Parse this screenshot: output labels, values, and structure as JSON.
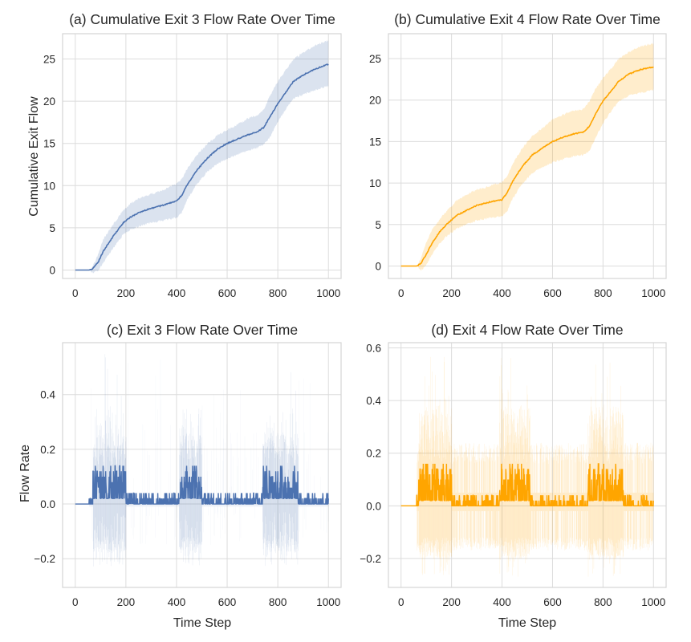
{
  "chart_data": [
    {
      "id": "a",
      "type": "line",
      "title": "(a) Cumulative Exit 3 Flow Rate Over Time",
      "xlabel": "",
      "ylabel": "Cumulative Exit Flow",
      "xlim": [
        -50,
        1050
      ],
      "ylim": [
        -1.0,
        28.0
      ],
      "xticks": [
        0,
        200,
        400,
        600,
        800,
        1000
      ],
      "xtick_labels": [
        "0",
        "200",
        "400",
        "600",
        "800",
        "1000"
      ],
      "yticks": [
        0,
        5,
        10,
        15,
        20,
        25
      ],
      "ytick_labels": [
        "0",
        "5",
        "10",
        "15",
        "20",
        "25"
      ],
      "grid": true,
      "color": "#4c72b0",
      "band_color": "#4c72b0",
      "band_opacity": 0.2,
      "x": [
        0,
        55,
        70,
        90,
        110,
        150,
        190,
        220,
        260,
        300,
        350,
        400,
        420,
        440,
        480,
        520,
        560,
        600,
        640,
        680,
        720,
        745,
        770,
        800,
        830,
        860,
        900,
        940,
        980,
        1000
      ],
      "mean": [
        0,
        0,
        0.2,
        0.9,
        2.2,
        4.0,
        5.6,
        6.3,
        6.9,
        7.3,
        7.7,
        8.2,
        8.8,
        10.0,
        11.8,
        13.2,
        14.3,
        15.0,
        15.5,
        16.0,
        16.4,
        16.9,
        18.2,
        19.7,
        21.0,
        22.3,
        23.1,
        23.7,
        24.2,
        24.4
      ],
      "lower": [
        0,
        0,
        -0.3,
        0,
        0.8,
        2.6,
        4.2,
        4.8,
        5.3,
        5.6,
        5.9,
        6.2,
        6.8,
        8.2,
        10.2,
        11.6,
        12.6,
        13.2,
        13.7,
        14.1,
        14.5,
        14.9,
        15.8,
        17.5,
        19.0,
        20.3,
        20.8,
        21.2,
        21.6,
        21.8
      ],
      "upper": [
        0,
        0,
        0.5,
        1.8,
        3.6,
        5.4,
        7.1,
        7.9,
        8.6,
        9.0,
        9.5,
        10.2,
        10.7,
        11.9,
        13.6,
        14.9,
        15.9,
        16.6,
        17.2,
        17.9,
        18.4,
        19.0,
        20.7,
        22.3,
        23.6,
        24.9,
        25.8,
        26.5,
        27.0,
        27.2
      ]
    },
    {
      "id": "b",
      "type": "line",
      "title": "(b) Cumulative Exit 4 Flow Rate Over Time",
      "xlabel": "",
      "ylabel": "",
      "xlim": [
        -50,
        1050
      ],
      "ylim": [
        -1.5,
        28.0
      ],
      "xticks": [
        0,
        200,
        400,
        600,
        800,
        1000
      ],
      "xtick_labels": [
        "0",
        "200",
        "400",
        "600",
        "800",
        "1000"
      ],
      "yticks": [
        0,
        5,
        10,
        15,
        20,
        25
      ],
      "ytick_labels": [
        "0",
        "5",
        "10",
        "15",
        "20",
        "25"
      ],
      "grid": true,
      "color": "#ffa500",
      "band_color": "#ffa500",
      "band_opacity": 0.2,
      "x": [
        0,
        65,
        80,
        100,
        120,
        150,
        180,
        220,
        260,
        300,
        350,
        400,
        420,
        440,
        480,
        520,
        560,
        600,
        640,
        680,
        720,
        745,
        770,
        800,
        830,
        860,
        900,
        940,
        980,
        1000
      ],
      "mean": [
        0,
        0,
        0.4,
        1.4,
        2.6,
        4.0,
        5.0,
        6.1,
        6.7,
        7.3,
        7.7,
        8.0,
        8.8,
        10.1,
        12.0,
        13.4,
        14.2,
        15.0,
        15.5,
        15.9,
        16.1,
        16.8,
        18.3,
        19.9,
        21.0,
        22.2,
        23.1,
        23.6,
        23.9,
        24.0
      ],
      "lower": [
        0,
        0,
        -0.5,
        0.2,
        1.2,
        2.6,
        3.6,
        4.5,
        5.0,
        5.5,
        5.8,
        6.0,
        6.6,
        8.0,
        9.9,
        11.2,
        11.9,
        12.5,
        12.9,
        13.2,
        13.4,
        13.8,
        15.4,
        17.2,
        18.6,
        19.8,
        20.5,
        20.8,
        21.1,
        21.3
      ],
      "upper": [
        0,
        0,
        1.1,
        2.8,
        4.2,
        5.5,
        6.6,
        7.9,
        8.6,
        9.2,
        9.6,
        10.1,
        10.8,
        12.2,
        14.2,
        15.7,
        16.6,
        17.7,
        18.2,
        18.7,
        18.9,
        19.8,
        21.3,
        22.7,
        23.7,
        24.9,
        25.8,
        26.4,
        26.7,
        26.8
      ]
    },
    {
      "id": "c",
      "type": "line",
      "title": "(c) Exit 3 Flow Rate Over Time",
      "xlabel": "Time Step",
      "ylabel": "Flow Rate",
      "xlim": [
        -50,
        1050
      ],
      "ylim": [
        -0.305,
        0.59
      ],
      "xticks": [
        0,
        200,
        400,
        600,
        800,
        1000
      ],
      "xtick_labels": [
        "0",
        "200",
        "400",
        "600",
        "800",
        "1000"
      ],
      "yticks": [
        -0.2,
        0.0,
        0.2,
        0.4
      ],
      "ytick_labels": [
        "−0.2",
        "0.0",
        "0.2",
        "0.4"
      ],
      "grid": true,
      "color": "#4c72b0",
      "band_color": "#4c72b0",
      "band_opacity": 0.2,
      "n_steps": 1000,
      "flow_start": 55,
      "quantum": 0.02,
      "active_periods": [
        [
          70,
          200
        ],
        [
          410,
          500
        ],
        [
          740,
          880
        ]
      ],
      "active_mean_max": 0.14,
      "quiet_mean_max": 0.04,
      "band_peak_upper": 0.55,
      "band_peak_lower": -0.27,
      "seed": 3
    },
    {
      "id": "d",
      "type": "line",
      "title": "(d) Exit 4 Flow Rate Over Time",
      "xlabel": "Time Step",
      "ylabel": "",
      "xlim": [
        -50,
        1050
      ],
      "ylim": [
        -0.31,
        0.62
      ],
      "xticks": [
        0,
        200,
        400,
        600,
        800,
        1000
      ],
      "xtick_labels": [
        "0",
        "200",
        "400",
        "600",
        "800",
        "1000"
      ],
      "yticks": [
        -0.2,
        0.0,
        0.2,
        0.4,
        0.6
      ],
      "ytick_labels": [
        "−0.2",
        "0.0",
        "0.2",
        "0.4",
        "0.6"
      ],
      "grid": true,
      "color": "#ffa500",
      "band_color": "#ffa500",
      "band_opacity": 0.2,
      "n_steps": 1000,
      "flow_start": 62,
      "quantum": 0.02,
      "active_periods": [
        [
          70,
          200
        ],
        [
          390,
          510
        ],
        [
          740,
          880
        ]
      ],
      "active_mean_max": 0.16,
      "quiet_mean_max": 0.04,
      "band_peak_upper": 0.58,
      "band_peak_lower": -0.27,
      "seed": 7
    }
  ]
}
